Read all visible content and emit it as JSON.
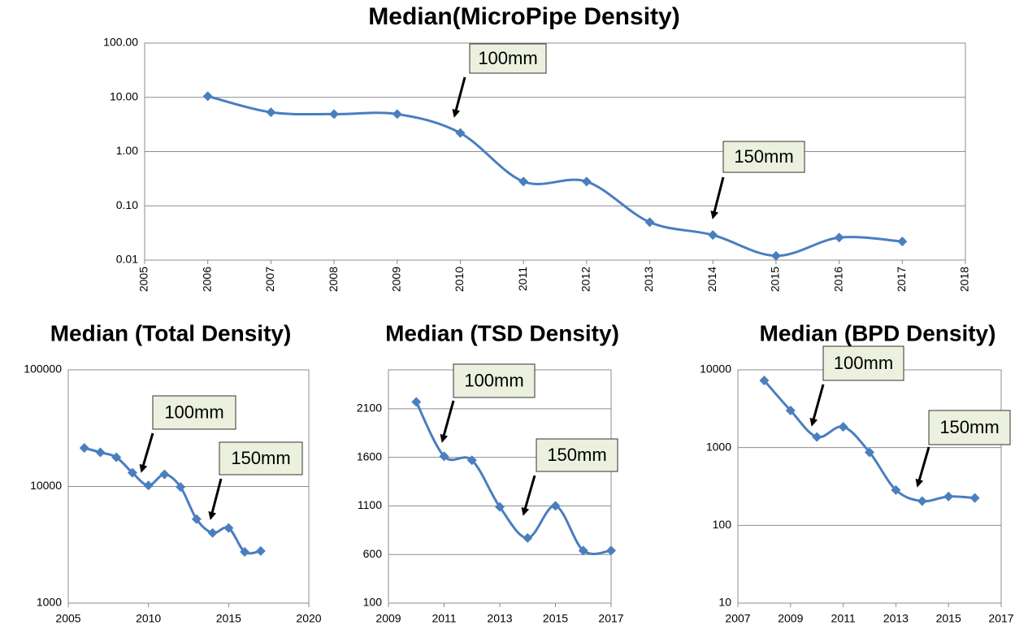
{
  "chart_data": [
    {
      "type": "line",
      "title": "Median(MicroPipe Density)",
      "log_y": true,
      "color": "#4a7ebf",
      "x": [
        2006,
        2007,
        2008,
        2009,
        2010,
        2011,
        2012,
        2013,
        2014,
        2015,
        2016,
        2017
      ],
      "values": [
        10.5,
        5.3,
        4.9,
        4.9,
        2.2,
        0.28,
        0.28,
        0.05,
        0.029,
        0.012,
        0.026,
        0.022
      ],
      "xlim": [
        2005,
        2018
      ],
      "xticks": [
        2005,
        2006,
        2007,
        2008,
        2009,
        2010,
        2011,
        2012,
        2013,
        2014,
        2015,
        2016,
        2017,
        2018
      ],
      "ylim": [
        0.01,
        100
      ],
      "yticks": [
        {
          "value": 0.01,
          "label": "0.01"
        },
        {
          "value": 0.1,
          "label": "0.10"
        },
        {
          "value": 1,
          "label": "1.00"
        },
        {
          "value": 10,
          "label": "10.00"
        },
        {
          "value": 100,
          "label": "100.00"
        }
      ],
      "grid": true,
      "annotations": [
        "100mm",
        "150mm"
      ]
    },
    {
      "type": "line",
      "title": "Median (Total Density)",
      "log_y": true,
      "color": "#4a7ebf",
      "x": [
        2006,
        2007,
        2008,
        2009,
        2010,
        2011,
        2012,
        2013,
        2014,
        2015,
        2016,
        2017
      ],
      "values": [
        21400,
        19600,
        17800,
        13100,
        10200,
        12700,
        9900,
        5250,
        4000,
        4400,
        2750,
        2800
      ],
      "xlim": [
        2005,
        2020
      ],
      "xticks": [
        2005,
        2010,
        2015,
        2020
      ],
      "ylim": [
        1000,
        100000
      ],
      "yticks": [
        1000,
        10000,
        100000
      ],
      "grid": true,
      "annotations": [
        "100mm",
        "150mm"
      ]
    },
    {
      "type": "line",
      "title": "Median (TSD Density)",
      "log_y": false,
      "color": "#4a7ebf",
      "x": [
        2010,
        2011,
        2012,
        2013,
        2014,
        2015,
        2016,
        2017
      ],
      "values": [
        2170,
        1610,
        1570,
        1090,
        770,
        1100,
        640,
        640
      ],
      "xlim": [
        2009,
        2017
      ],
      "xticks": [
        2009,
        2011,
        2013,
        2015,
        2017
      ],
      "ylim": [
        100,
        2500
      ],
      "yticks": [
        100,
        600,
        1100,
        1600,
        2100
      ],
      "grid": true,
      "annotations": [
        "100mm",
        "150mm"
      ]
    },
    {
      "type": "line",
      "title": "Median (BPD Density)",
      "log_y": true,
      "color": "#4a7ebf",
      "x": [
        2008,
        2009,
        2010,
        2011,
        2012,
        2013,
        2014,
        2015,
        2016
      ],
      "values": [
        7300,
        3000,
        1370,
        1850,
        870,
        285,
        205,
        235,
        225
      ],
      "xlim": [
        2007,
        2017
      ],
      "xticks": [
        2007,
        2009,
        2011,
        2013,
        2015,
        2017
      ],
      "ylim": [
        10,
        10000
      ],
      "yticks": [
        10,
        100,
        1000,
        10000
      ],
      "grid": true,
      "annotations": [
        "100mm",
        "150mm"
      ]
    }
  ]
}
